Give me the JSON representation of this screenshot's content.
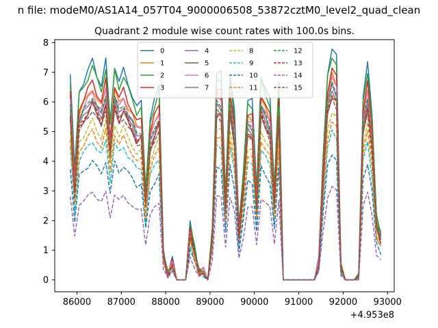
{
  "header": {
    "suptitle": "n file: modeM0/AS1A14_057T04_9000006508_53872cztM0_level2_quad_clean",
    "title": "Quadrant 2 module wise count rates with 100.0s bins."
  },
  "chart_data": {
    "type": "line",
    "title": "Quadrant 2 module wise count rates with 100.0s bins.",
    "xlabel": "",
    "ylabel": "",
    "x_offset_label": "+4.953e8",
    "xlim": [
      85500,
      93150
    ],
    "ylim": [
      -0.4,
      8.1
    ],
    "xticks": [
      86000,
      87000,
      88000,
      89000,
      90000,
      91000,
      92000,
      93000
    ],
    "xtick_labels": [
      "86000",
      "87000",
      "88000",
      "89000",
      "90000",
      "91000",
      "92000",
      "93000"
    ],
    "yticks": [
      0,
      1,
      2,
      3,
      4,
      5,
      6,
      7,
      8
    ],
    "ytick_labels": [
      "0",
      "1",
      "2",
      "3",
      "4",
      "5",
      "6",
      "7",
      "8"
    ],
    "grid": false,
    "legend_placement": "upper-center",
    "legend_columns": 4,
    "x": [
      85850,
      85950,
      86050,
      86150,
      86250,
      86350,
      86450,
      86550,
      86650,
      86750,
      86850,
      86950,
      87050,
      87150,
      87250,
      87350,
      87450,
      87550,
      87650,
      87750,
      87850,
      87950,
      88050,
      88150,
      88250,
      88350,
      88450,
      88550,
      88650,
      88750,
      88850,
      88950,
      89050,
      89150,
      89250,
      89350,
      89450,
      89550,
      89650,
      89750,
      89850,
      89950,
      90050,
      90150,
      90250,
      90350,
      90450,
      90550,
      90650,
      90750,
      90850,
      90950,
      91050,
      91150,
      91250,
      91350,
      91450,
      91550,
      91650,
      91750,
      91850,
      91950,
      92050,
      92150,
      92250,
      92350,
      92450,
      92550,
      92650,
      92750,
      92850
    ],
    "profile_note": "each series = module scale factor applied to common profile",
    "profile": [
      6.3,
      3.3,
      5.8,
      6.1,
      6.4,
      6.7,
      6.3,
      6.0,
      6.7,
      4.8,
      6.6,
      6.1,
      6.4,
      6.0,
      5.7,
      5.3,
      5.4,
      2.8,
      5.0,
      5.5,
      5.9,
      0.9,
      0.2,
      0.6,
      0.0,
      0.0,
      0.0,
      1.7,
      1.0,
      0.3,
      0.3,
      0.0,
      1.6,
      6.4,
      6.3,
      2.6,
      6.4,
      5.2,
      1.6,
      3.3,
      5.6,
      5.5,
      2.7,
      6.3,
      5.9,
      5.5,
      2.8,
      6.2,
      0.0,
      0.0,
      0.0,
      0.0,
      0.0,
      0.0,
      0.0,
      0.0,
      0.6,
      3.8,
      6.4,
      7.1,
      6.8,
      0.4,
      0.0,
      0.0,
      0.0,
      0.1,
      5.7,
      6.6,
      5.0,
      2.0,
      1.5
    ],
    "series": [
      {
        "name": "0",
        "color": "#1f77b4",
        "dash": "solid",
        "scale": 1.1
      },
      {
        "name": "1",
        "color": "#ff7f0e",
        "dash": "solid",
        "scale": 0.97
      },
      {
        "name": "2",
        "color": "#2ca02c",
        "dash": "solid",
        "scale": 1.07
      },
      {
        "name": "3",
        "color": "#d62728",
        "dash": "solid",
        "scale": 1.0
      },
      {
        "name": "4",
        "color": "#9467bd",
        "dash": "solid",
        "scale": 0.92
      },
      {
        "name": "5",
        "color": "#8c564b",
        "dash": "solid",
        "scale": 0.88
      },
      {
        "name": "6",
        "color": "#e377c2",
        "dash": "solid",
        "scale": 0.95
      },
      {
        "name": "7",
        "color": "#7f7f7f",
        "dash": "solid",
        "scale": 0.9
      },
      {
        "name": "8",
        "color": "#bcbd22",
        "dash": "dashed",
        "scale": 0.8
      },
      {
        "name": "9",
        "color": "#17becf",
        "dash": "dashed",
        "scale": 0.7
      },
      {
        "name": "10",
        "color": "#1f77b4",
        "dash": "dashed",
        "scale": 0.6
      },
      {
        "name": "11",
        "color": "#ff7f0e",
        "dash": "dashed",
        "scale": 0.75
      },
      {
        "name": "12",
        "color": "#2ca02c",
        "dash": "dashed",
        "scale": 0.93
      },
      {
        "name": "13",
        "color": "#d62728",
        "dash": "dashed",
        "scale": 0.89
      },
      {
        "name": "14",
        "color": "#9467bd",
        "dash": "dashed",
        "scale": 0.44
      },
      {
        "name": "15",
        "color": "#8c564b",
        "dash": "dashed",
        "scale": 0.86
      }
    ]
  }
}
